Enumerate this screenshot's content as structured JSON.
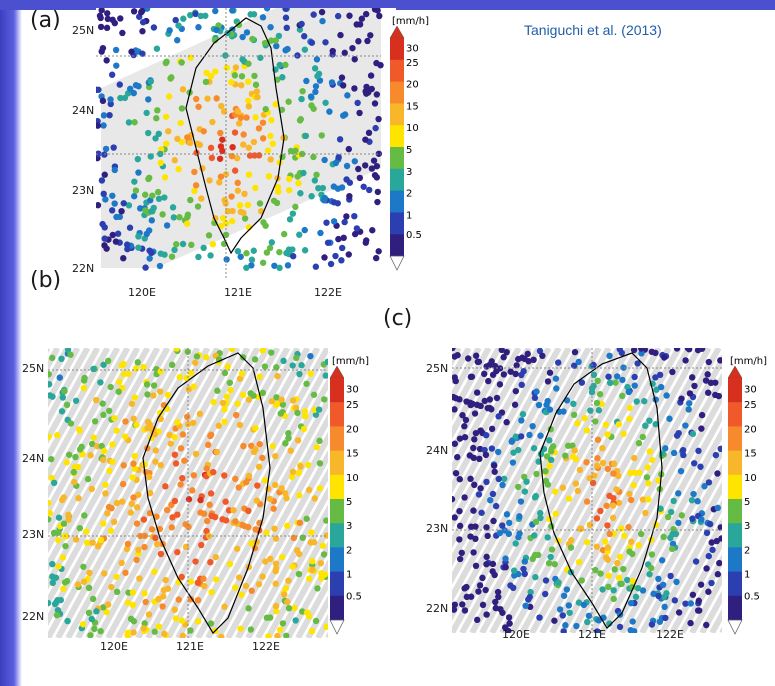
{
  "credit": "Taniguchi et al. (2013)",
  "panels": [
    {
      "label": "(a)",
      "lat_labels": [
        "25N",
        "24N",
        "23N",
        "22N"
      ],
      "lon_labels": [
        "120E",
        "121E",
        "122E"
      ],
      "colorbar_unit": "[mm/h]",
      "colorbar_ticks": [
        "30",
        "25",
        "20",
        "15",
        "10",
        "5",
        "3",
        "2",
        "1",
        "0.5"
      ]
    },
    {
      "label": "(b)",
      "lat_labels": [
        "25N",
        "24N",
        "23N",
        "22N"
      ],
      "lon_labels": [
        "120E",
        "121E",
        "122E"
      ],
      "colorbar_unit": "[mm/h]",
      "colorbar_ticks": [
        "30",
        "25",
        "20",
        "15",
        "10",
        "5",
        "3",
        "2",
        "1",
        "0.5"
      ]
    },
    {
      "label": "(c)",
      "lat_labels": [
        "25N",
        "24N",
        "23N",
        "22N"
      ],
      "lon_labels": [
        "120E",
        "121E",
        "122E"
      ],
      "colorbar_unit": "[mm/h]",
      "colorbar_ticks": [
        "30",
        "25",
        "20",
        "15",
        "10",
        "5",
        "3",
        "2",
        "1",
        "0.5"
      ]
    }
  ],
  "colorbar_colors": [
    "#d7301f",
    "#f0592a",
    "#f68a2c",
    "#f8b62b",
    "#ffe400",
    "#66bb44",
    "#2aa79b",
    "#1e78c8",
    "#2b3fb0",
    "#311f80"
  ]
}
